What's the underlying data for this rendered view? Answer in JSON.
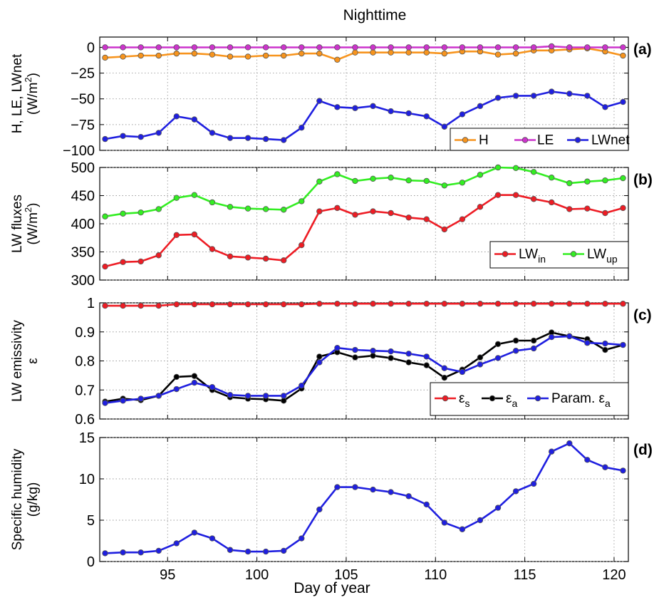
{
  "figure": {
    "title": "Nighttime",
    "xlabel": "Day of year",
    "xticks": [
      95,
      100,
      105,
      110,
      115,
      120
    ],
    "xlim": [
      91.2,
      120.8
    ]
  },
  "chart_data": [
    {
      "type": "line",
      "panel_label": "(a)",
      "ylabel": [
        "H, LE, LWnet",
        "(W/m",
        "2",
        ")"
      ],
      "ylim": [
        -100,
        10
      ],
      "yticks": [
        0,
        -25,
        -50,
        -75,
        -100
      ],
      "grid": true,
      "legend": "bottom-right",
      "x": [
        91.5,
        92.5,
        93.5,
        94.5,
        95.5,
        96.5,
        97.5,
        98.5,
        99.5,
        100.5,
        101.5,
        102.5,
        103.5,
        104.5,
        105.5,
        106.5,
        107.5,
        108.5,
        109.5,
        110.5,
        111.5,
        112.5,
        113.5,
        114.5,
        115.5,
        116.5,
        117.5,
        118.5,
        119.5,
        120.5
      ],
      "series": [
        {
          "name": "H",
          "color": "#f7941d",
          "values": [
            -10,
            -9,
            -8,
            -8,
            -6,
            -6,
            -7,
            -9,
            -9,
            -8,
            -8,
            -6,
            -6,
            -12,
            -5,
            -5,
            -5,
            -5,
            -5,
            -6,
            -4,
            -4,
            -7,
            -6,
            -3,
            -3,
            -2,
            -1,
            -4,
            -8
          ]
        },
        {
          "name": "LE",
          "color": "#cc33cc",
          "values": [
            0,
            0,
            0,
            0,
            0,
            0,
            0,
            0,
            0,
            0,
            0,
            0,
            0,
            0,
            0,
            0,
            0,
            0,
            0,
            0,
            0,
            0,
            0,
            0,
            0,
            1,
            0,
            0,
            0,
            0
          ]
        },
        {
          "name": "LWnet",
          "color": "#1f1fe0",
          "values": [
            -89,
            -86,
            -87,
            -83,
            -67,
            -70,
            -83,
            -88,
            -88,
            -89,
            -90,
            -78,
            -52,
            -58,
            -59,
            -57,
            -62,
            -64,
            -67,
            -77,
            -65,
            -57,
            -49,
            -47,
            -47,
            -43,
            -45,
            -47,
            -58,
            -53
          ]
        }
      ]
    },
    {
      "type": "line",
      "panel_label": "(b)",
      "ylabel": [
        "LW fluxes",
        "(W/m",
        "2",
        ")"
      ],
      "ylim": [
        300,
        500
      ],
      "yticks": [
        300,
        350,
        400,
        450,
        500
      ],
      "grid": true,
      "legend": "bottom-right",
      "x": [
        91.5,
        92.5,
        93.5,
        94.5,
        95.5,
        96.5,
        97.5,
        98.5,
        99.5,
        100.5,
        101.5,
        102.5,
        103.5,
        104.5,
        105.5,
        106.5,
        107.5,
        108.5,
        109.5,
        110.5,
        111.5,
        112.5,
        113.5,
        114.5,
        115.5,
        116.5,
        117.5,
        118.5,
        119.5,
        120.5
      ],
      "series": [
        {
          "name": "LW",
          "sub": "in",
          "color": "#ee1c24",
          "values": [
            324,
            332,
            333,
            344,
            380,
            381,
            355,
            342,
            340,
            338,
            335,
            362,
            422,
            428,
            416,
            422,
            419,
            411,
            408,
            390,
            408,
            430,
            451,
            451,
            444,
            438,
            426,
            427,
            419,
            428
          ]
        },
        {
          "name": "LW",
          "sub": "up",
          "color": "#33ee22",
          "values": [
            413,
            418,
            420,
            426,
            446,
            451,
            438,
            430,
            427,
            426,
            425,
            440,
            475,
            488,
            476,
            480,
            482,
            477,
            476,
            468,
            473,
            487,
            500,
            499,
            492,
            482,
            472,
            475,
            477,
            481
          ]
        }
      ]
    },
    {
      "type": "line",
      "panel_label": "(c)",
      "ylabel": [
        "LW  emissivity",
        "ε"
      ],
      "ylim": [
        0.6,
        1.0
      ],
      "yticks": [
        0.6,
        0.7,
        0.8,
        0.9,
        1
      ],
      "ytick_labels": [
        "0.6",
        "0.7",
        "0.8",
        "0.9",
        "1"
      ],
      "grid": true,
      "legend": "bottom-right",
      "x": [
        91.5,
        92.5,
        93.5,
        94.5,
        95.5,
        96.5,
        97.5,
        98.5,
        99.5,
        100.5,
        101.5,
        102.5,
        103.5,
        104.5,
        105.5,
        106.5,
        107.5,
        108.5,
        109.5,
        110.5,
        111.5,
        112.5,
        113.5,
        114.5,
        115.5,
        116.5,
        117.5,
        118.5,
        119.5,
        120.5
      ],
      "series": [
        {
          "name": "ε",
          "sub": "s",
          "color": "#ee1c24",
          "values": [
            0.99,
            0.99,
            0.99,
            0.99,
            0.995,
            0.995,
            0.995,
            0.995,
            0.995,
            0.995,
            0.995,
            0.995,
            0.997,
            0.997,
            0.997,
            0.997,
            0.997,
            0.997,
            0.997,
            0.997,
            0.997,
            0.997,
            0.997,
            0.997,
            0.997,
            0.997,
            0.997,
            0.997,
            0.997,
            0.997
          ]
        },
        {
          "name": "ε",
          "sub": "a",
          "color": "#000000",
          "values": [
            0.66,
            0.67,
            0.665,
            0.68,
            0.745,
            0.748,
            0.7,
            0.675,
            0.67,
            0.668,
            0.663,
            0.705,
            0.815,
            0.83,
            0.812,
            0.818,
            0.81,
            0.795,
            0.785,
            0.742,
            0.77,
            0.812,
            0.858,
            0.87,
            0.87,
            0.898,
            0.885,
            0.875,
            0.838,
            0.855
          ]
        },
        {
          "name": "Param. ε",
          "sub": "a",
          "color": "#1f1fe0",
          "values": [
            0.655,
            0.663,
            0.67,
            0.68,
            0.703,
            0.725,
            0.71,
            0.683,
            0.68,
            0.68,
            0.68,
            0.715,
            0.795,
            0.845,
            0.838,
            0.835,
            0.833,
            0.825,
            0.815,
            0.775,
            0.762,
            0.788,
            0.81,
            0.835,
            0.843,
            0.882,
            0.885,
            0.862,
            0.86,
            0.855
          ]
        }
      ]
    },
    {
      "type": "line",
      "panel_label": "(d)",
      "ylabel": [
        "Specific humidity",
        "(g/kg)"
      ],
      "ylim": [
        0,
        15
      ],
      "yticks": [
        0,
        5,
        10,
        15
      ],
      "grid": true,
      "x": [
        91.5,
        92.5,
        93.5,
        94.5,
        95.5,
        96.5,
        97.5,
        98.5,
        99.5,
        100.5,
        101.5,
        102.5,
        103.5,
        104.5,
        105.5,
        106.5,
        107.5,
        108.5,
        109.5,
        110.5,
        111.5,
        112.5,
        113.5,
        114.5,
        115.5,
        116.5,
        117.5,
        118.5,
        119.5,
        120.5
      ],
      "series": [
        {
          "color": "#1f1fe0",
          "values": [
            1.0,
            1.1,
            1.1,
            1.3,
            2.2,
            3.5,
            2.8,
            1.4,
            1.2,
            1.2,
            1.3,
            2.8,
            6.3,
            9.0,
            9.0,
            8.7,
            8.4,
            7.9,
            6.9,
            4.7,
            3.9,
            5.0,
            6.5,
            8.5,
            9.4,
            13.3,
            14.3,
            12.3,
            11.4,
            11.0
          ]
        }
      ]
    }
  ]
}
